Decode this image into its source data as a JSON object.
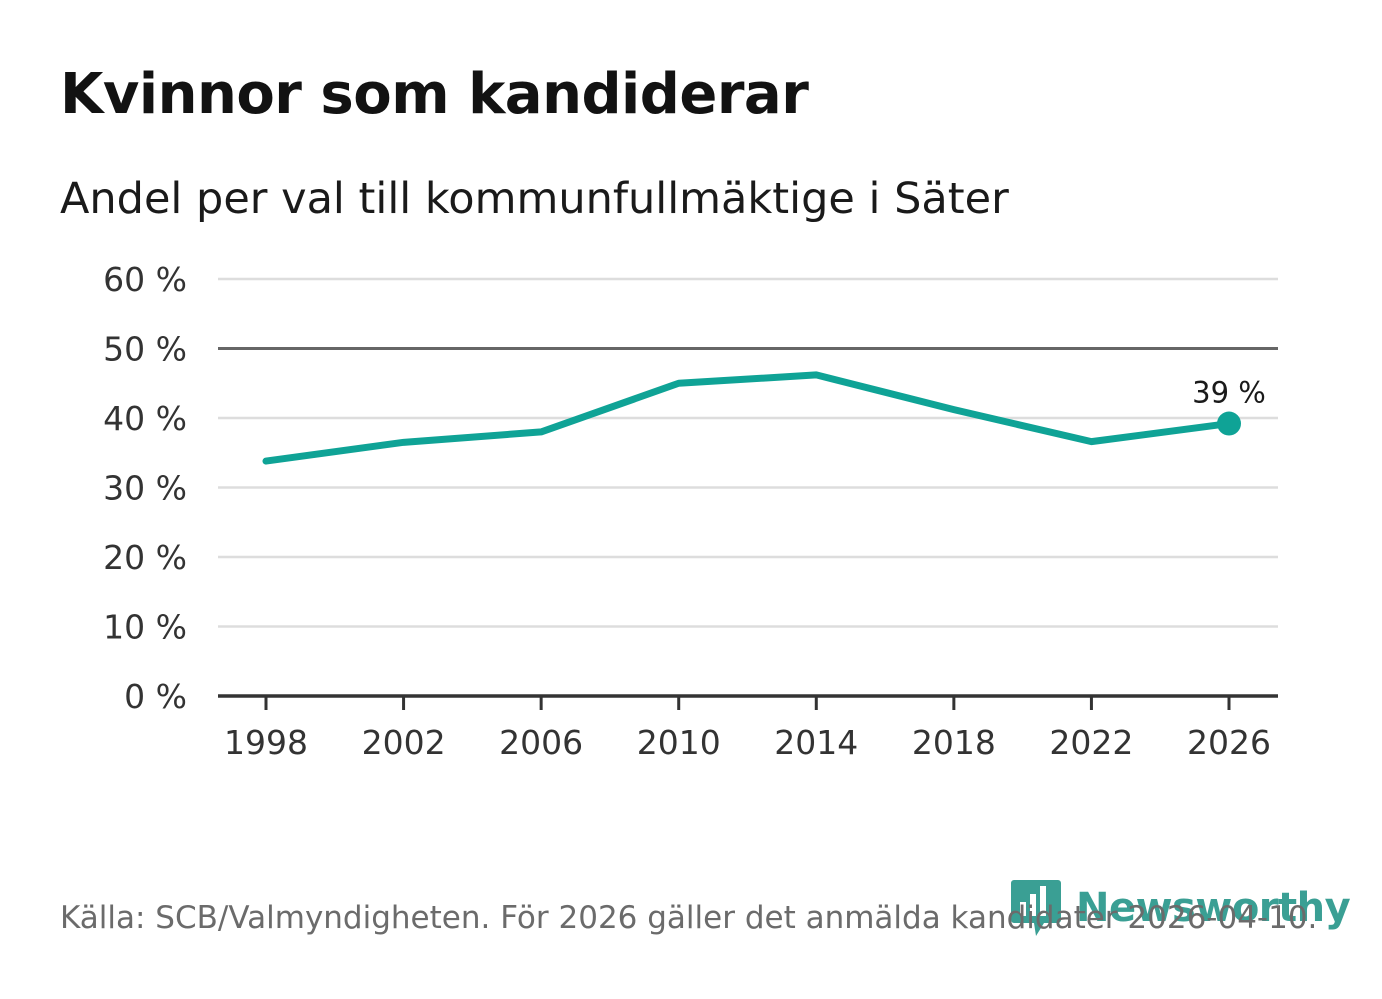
{
  "title": "Kvinnor som kandiderar",
  "subtitle": "Andel per val till kommunfullmäktige i Säter",
  "source": "Källa: SCB/Valmyndigheten. För 2026 gäller det anmälda kandidater 2026-04-10.",
  "logo": {
    "text": "Newsworthy",
    "icon": "bar-chart-bubble-icon"
  },
  "colors": {
    "line": "#0fa396",
    "grid": "#dddddd",
    "axis": "#333333",
    "reference": "#666666",
    "brand": "#3a9f94"
  },
  "chart_data": {
    "type": "line",
    "title": "Kvinnor som kandiderar",
    "subtitle": "Andel per val till kommunfullmäktige i Säter",
    "xlabel": "",
    "ylabel": "",
    "x": [
      1998,
      2002,
      2006,
      2010,
      2014,
      2018,
      2022,
      2026
    ],
    "values": [
      33.8,
      36.5,
      38.0,
      45.0,
      46.2,
      41.2,
      36.6,
      39.2
    ],
    "ylim": [
      0,
      60
    ],
    "xlim": [
      1998,
      2026
    ],
    "yticks": [
      0,
      10,
      20,
      30,
      40,
      50,
      60
    ],
    "ytick_labels": [
      "0 %",
      "10 %",
      "20 %",
      "30 %",
      "40 %",
      "50 %",
      "60 %"
    ],
    "xtick_labels": [
      "1998",
      "2002",
      "2006",
      "2010",
      "2014",
      "2018",
      "2022",
      "2026"
    ],
    "reference_line": 50,
    "end_label": "39 %",
    "grid": true
  }
}
